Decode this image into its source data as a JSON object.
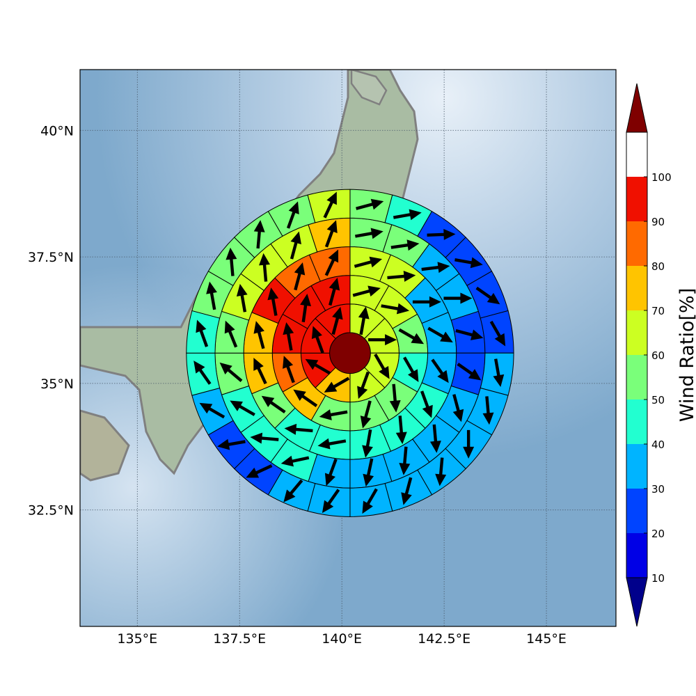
{
  "map": {
    "lon_range": [
      133.6,
      146.7
    ],
    "lat_range": [
      30.2,
      41.2
    ],
    "xticks": [
      {
        "value": 135,
        "label": "135°E"
      },
      {
        "value": 137.5,
        "label": "137.5°E"
      },
      {
        "value": 140,
        "label": "140°E"
      },
      {
        "value": 142.5,
        "label": "142.5°E"
      },
      {
        "value": 145,
        "label": "145°E"
      }
    ],
    "yticks": [
      {
        "value": 40,
        "label": "40°N"
      },
      {
        "value": 37.5,
        "label": "37.5°N"
      },
      {
        "value": 35,
        "label": "35°N"
      },
      {
        "value": 32.5,
        "label": "32.5°N"
      }
    ],
    "gridlines": true,
    "background": "shaded relief (sea blue, land green-grey)",
    "coastline_color": "#808080"
  },
  "colorbar": {
    "title": "Wind Ratio[%]",
    "labels": [
      "10",
      "20",
      "30",
      "40",
      "50",
      "60",
      "70",
      "80",
      "90",
      "100"
    ],
    "extend": "both",
    "colormap": [
      "#00008b",
      "#0000e6",
      "#0044ff",
      "#00b4ff",
      "#22ffd0",
      "#7aff7a",
      "#ccff22",
      "#ffc400",
      "#ff6a00",
      "#f01000",
      "#7f0000"
    ]
  },
  "chart_data": {
    "type": "heatmap",
    "description_of_grid": "polar grid around storm center, rows = rings from inner to outer, each ring split into equal-angle sectors clockwise from north",
    "center": {
      "lon": 140.2,
      "lat": 35.6
    },
    "ring_radius_deg": [
      0.5,
      1.2,
      1.9,
      2.6,
      3.3,
      4.0
    ],
    "rings": [
      {
        "sectors": 1,
        "ratio": [
          100
        ],
        "direction": [
          null
        ]
      },
      {
        "sectors": 8,
        "ratio": [
          60,
          60,
          60,
          60,
          70,
          90,
          90,
          90
        ],
        "direction": [
          10,
          90,
          150,
          200,
          240,
          300,
          340,
          15
        ]
      },
      {
        "sectors": 12,
        "ratio": [
          60,
          60,
          50,
          40,
          50,
          50,
          50,
          70,
          80,
          90,
          90,
          90
        ],
        "direction": [
          75,
          100,
          120,
          150,
          175,
          195,
          260,
          305,
          340,
          350,
          8,
          15
        ]
      },
      {
        "sectors": 16,
        "ratio": [
          60,
          60,
          30,
          30,
          30,
          40,
          40,
          40,
          40,
          40,
          50,
          70,
          70,
          90,
          80,
          80
        ],
        "direction": [
          75,
          85,
          90,
          120,
          145,
          160,
          175,
          190,
          260,
          275,
          305,
          335,
          345,
          350,
          15,
          25
        ]
      },
      {
        "sectors": 20,
        "ratio": [
          50,
          50,
          30,
          30,
          20,
          20,
          30,
          30,
          30,
          30,
          30,
          40,
          40,
          40,
          50,
          50,
          60,
          60,
          60,
          70
        ],
        "direction": [
          80,
          82,
          83,
          90,
          105,
          125,
          165,
          175,
          185,
          192,
          200,
          258,
          275,
          300,
          310,
          338,
          350,
          355,
          15,
          20
        ]
      },
      {
        "sectors": 24,
        "ratio": [
          50,
          40,
          20,
          20,
          20,
          20,
          30,
          30,
          30,
          30,
          30,
          30,
          30,
          30,
          20,
          20,
          30,
          40,
          40,
          50,
          50,
          50,
          50,
          60
        ],
        "direction": [
          75,
          80,
          88,
          100,
          125,
          150,
          170,
          175,
          180,
          185,
          195,
          210,
          215,
          220,
          245,
          260,
          300,
          325,
          340,
          350,
          355,
          5,
          20,
          25
        ]
      }
    ]
  }
}
